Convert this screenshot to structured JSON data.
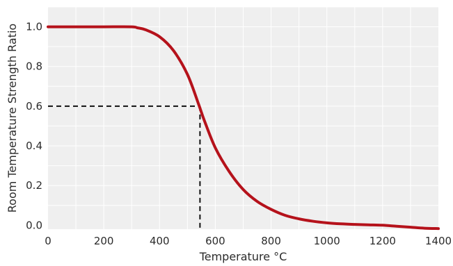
{
  "chart_data": {
    "type": "line",
    "title": "",
    "xlabel": "Temperature °C",
    "ylabel": "Room Temperature Strength Ratio",
    "xlim": [
      0,
      1400
    ],
    "ylim": [
      -0.02,
      1.1
    ],
    "grid": true,
    "x_ticks": [
      0,
      200,
      400,
      600,
      800,
      1000,
      1200,
      1400
    ],
    "y_ticks": [
      0.0,
      0.2,
      0.4,
      0.6,
      0.8,
      1.0
    ],
    "x_tick_labels": [
      "0",
      "200",
      "400",
      "600",
      "800",
      "1000",
      "1200",
      "1400"
    ],
    "y_tick_labels": [
      "0.0",
      "0.2",
      "0.4",
      "0.6",
      "0.8",
      "1.0"
    ],
    "series": [
      {
        "color": "#b5121b",
        "x": [
          0,
          100,
          200,
          300,
          320,
          350,
          400,
          450,
          500,
          540,
          560,
          600,
          650,
          700,
          750,
          800,
          850,
          900,
          950,
          1000,
          1050,
          1100,
          1150,
          1200,
          1250,
          1300,
          1350,
          1400
        ],
        "y": [
          1.0,
          1.0,
          1.0,
          1.0,
          0.995,
          0.985,
          0.95,
          0.88,
          0.76,
          0.61,
          0.53,
          0.39,
          0.27,
          0.18,
          0.12,
          0.08,
          0.05,
          0.032,
          0.02,
          0.012,
          0.007,
          0.004,
          0.002,
          0.0,
          -0.005,
          -0.01,
          -0.015,
          -0.017
        ]
      }
    ],
    "annotations": [
      {
        "type": "dashed-guide",
        "x": 545,
        "y": 0.6,
        "color": "#111111"
      }
    ]
  }
}
